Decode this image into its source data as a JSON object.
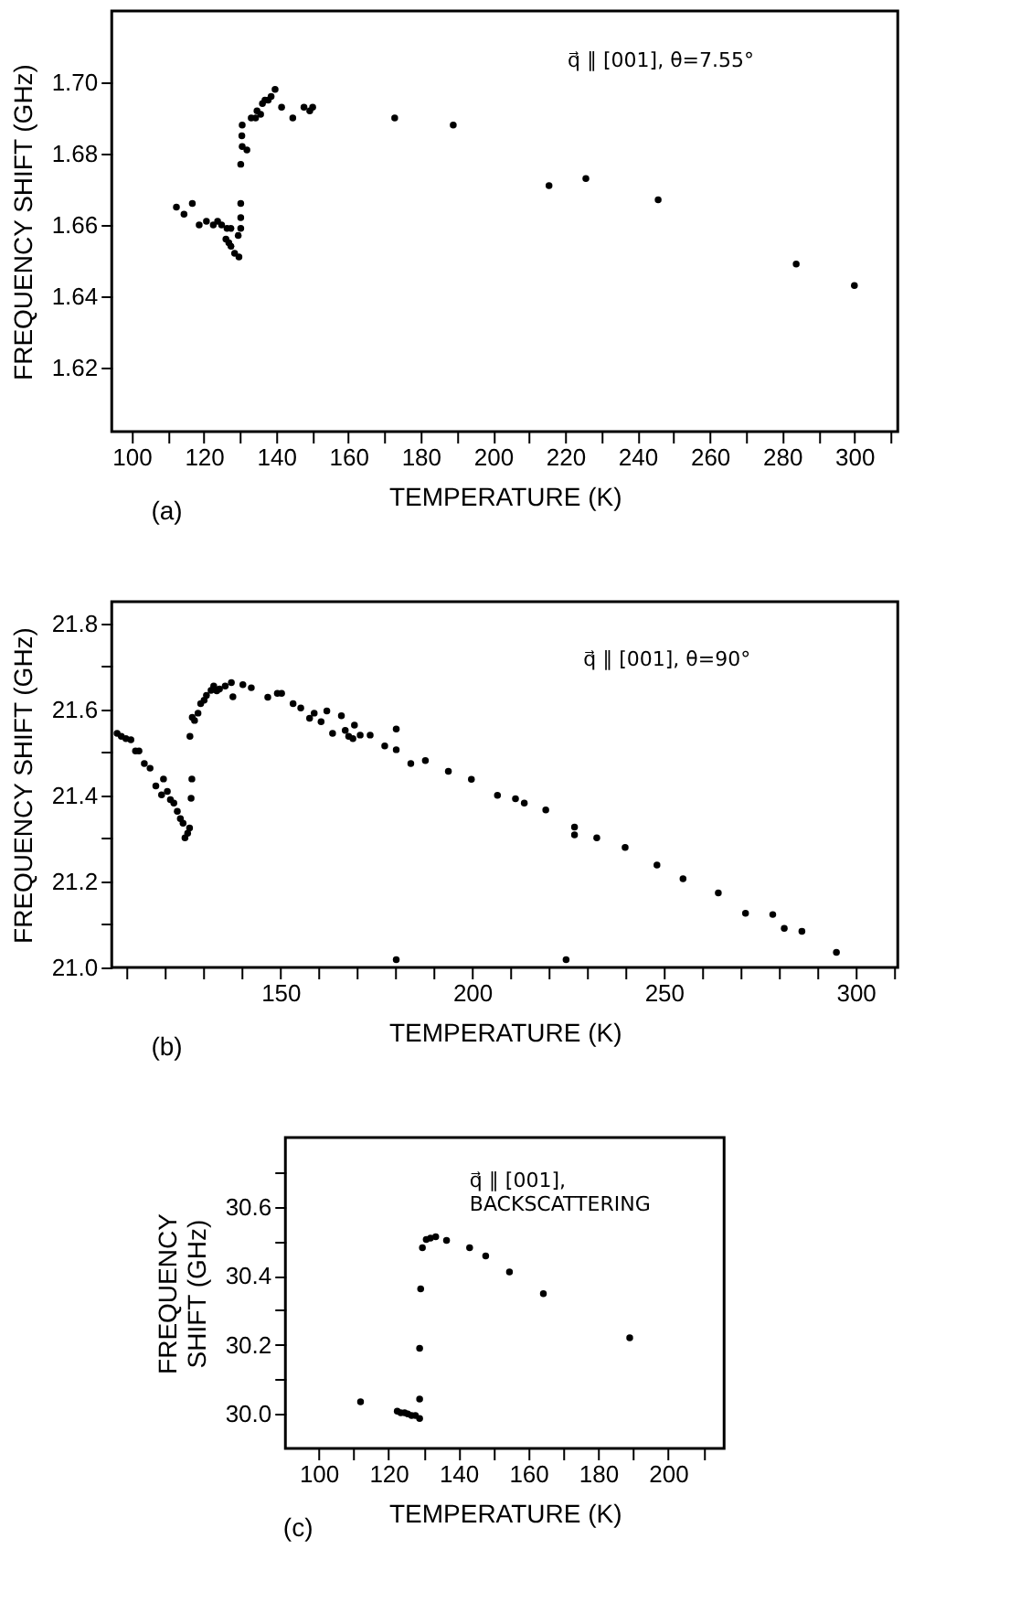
{
  "chart_data": [
    {
      "type": "scatter",
      "xlabel": "TEMPERATURE (K)",
      "ylabel": "FREQUENCY SHIFT (GHz)",
      "marker": "circle",
      "annotations": [
        "q⃗ ∥ [001], θ=7.55°",
        "(a)"
      ],
      "xlim": [
        94.5,
        312
      ],
      "ylim": [
        1.602,
        1.72
      ],
      "xticks": [
        100,
        {
          "value": 110,
          "label": null
        },
        120,
        {
          "value": 130,
          "label": null
        },
        140,
        {
          "value": 150,
          "label": null
        },
        160,
        {
          "value": 170,
          "label": null
        },
        180,
        {
          "value": 190,
          "label": null
        },
        200,
        {
          "value": 210,
          "label": null
        },
        220,
        {
          "value": 230,
          "label": null
        },
        240,
        {
          "value": 250,
          "label": null
        },
        260,
        {
          "value": 270,
          "label": null
        },
        280,
        {
          "value": 290,
          "label": null
        },
        300,
        {
          "value": 310,
          "label": null
        }
      ],
      "yticks": [
        1.62,
        1.64,
        1.66,
        1.68,
        {
          "value": 1.7,
          "label": "1.70"
        }
      ],
      "series": [
        {
          "color": "#000000",
          "x": [
            112.4,
            114.5,
            116.8,
            118.7,
            120.7,
            122.6,
            123.8,
            124.9,
            126.4,
            127.5,
            126.1,
            126.9,
            127.5,
            128.5,
            129.7,
            129.5,
            130.2,
            130.2,
            130.2,
            130.2,
            130.6,
            131.9,
            130.5,
            130.6,
            133.1,
            134.3,
            134.7,
            135.7,
            136.2,
            136.9,
            137.8,
            138.6,
            139.7,
            141.5,
            144.6,
            147.7,
            149.3,
            150.1,
            172.8,
            189.0,
            215.5,
            225.7,
            245.7,
            283.9,
            300.0
          ],
          "values": [
            1.665,
            1.663,
            1.666,
            1.66,
            1.661,
            1.66,
            1.661,
            1.66,
            1.659,
            1.659,
            1.656,
            1.655,
            1.654,
            1.652,
            1.651,
            1.657,
            1.659,
            1.662,
            1.666,
            1.677,
            1.682,
            1.681,
            1.685,
            1.688,
            1.69,
            1.69,
            1.692,
            1.691,
            1.694,
            1.695,
            1.695,
            1.696,
            1.698,
            1.693,
            1.69,
            1.693,
            1.692,
            1.693,
            1.69,
            1.688,
            1.671,
            1.673,
            1.667,
            1.649,
            1.643
          ]
        }
      ]
    },
    {
      "type": "scatter",
      "xlabel": "TEMPERATURE (K)",
      "ylabel": "FREQUENCY SHIFT (GHz)",
      "marker": "circle",
      "annotations": [
        "q⃗ ∥ [001], θ=90°",
        "(b)"
      ],
      "xlim": [
        106,
        311
      ],
      "ylim": [
        21.0,
        21.85
      ],
      "xticks": [
        {
          "value": 110,
          "label": null
        },
        {
          "value": 120,
          "label": null
        },
        {
          "value": 130,
          "label": null
        },
        {
          "value": 140,
          "label": null
        },
        150,
        {
          "value": 160,
          "label": null
        },
        {
          "value": 170,
          "label": null
        },
        {
          "value": 180,
          "label": null
        },
        {
          "value": 190,
          "label": null
        },
        200,
        {
          "value": 210,
          "label": null
        },
        {
          "value": 220,
          "label": null
        },
        {
          "value": 230,
          "label": null
        },
        {
          "value": 240,
          "label": null
        },
        250,
        {
          "value": 260,
          "label": null
        },
        {
          "value": 270,
          "label": null
        },
        {
          "value": 280,
          "label": null
        },
        {
          "value": 290,
          "label": null
        },
        300,
        {
          "value": 310,
          "label": null
        }
      ],
      "yticks": [
        {
          "value": 21.0,
          "label": "21.0"
        },
        {
          "value": 21.1,
          "label": null
        },
        21.2,
        {
          "value": 21.3,
          "label": null
        },
        21.4,
        {
          "value": 21.5,
          "label": null
        },
        21.6,
        {
          "value": 21.7,
          "label": null
        },
        21.8
      ],
      "series": [
        {
          "color": "#000000",
          "x": [
            107.4,
            108.5,
            109.7,
            111.0,
            112.2,
            113.1,
            114.5,
            116.0,
            117.5,
            119.0,
            119.5,
            120.5,
            121.3,
            122.2,
            123.1,
            123.9,
            124.6,
            125.1,
            125.8,
            126.3,
            126.4,
            126.7,
            126.9,
            127.0,
            127.6,
            128.5,
            129.2,
            130.1,
            130.7,
            131.9,
            132.6,
            133.4,
            134.1,
            135.6,
            137.2,
            137.6,
            140.2,
            142.4,
            146.7,
            149.2,
            150.3,
            153.3,
            155.3,
            157.6,
            158.8,
            160.6,
            162.1,
            163.6,
            165.9,
            166.9,
            167.8,
            168.9,
            169.3,
            170.8,
            173.4,
            177.2,
            180.2,
            180.2,
            184.0,
            187.8,
            193.8,
            199.8,
            206.6,
            180.2,
            211.3,
            213.6,
            219.2,
            226.7,
            226.7,
            232.5,
            239.9,
            248.2,
            255.0,
            264.2,
            271.3,
            278.4,
            281.4,
            286.0,
            295.0,
            224.5
          ],
          "values": [
            21.544,
            21.537,
            21.532,
            21.529,
            21.503,
            21.503,
            21.474,
            21.463,
            21.422,
            21.401,
            21.438,
            21.409,
            21.39,
            21.382,
            21.363,
            21.346,
            21.335,
            21.301,
            21.312,
            21.324,
            21.537,
            21.393,
            21.438,
            21.581,
            21.574,
            21.591,
            21.613,
            21.621,
            21.632,
            21.644,
            21.654,
            21.643,
            21.647,
            21.654,
            21.662,
            21.629,
            21.657,
            21.65,
            21.628,
            21.637,
            21.637,
            21.613,
            21.603,
            21.579,
            21.591,
            21.571,
            21.596,
            21.544,
            21.585,
            21.551,
            21.537,
            21.532,
            21.563,
            21.54,
            21.54,
            21.515,
            21.554,
            21.506,
            21.474,
            21.481,
            21.456,
            21.437,
            21.4,
            21.018,
            21.392,
            21.382,
            21.366,
            21.326,
            21.308,
            21.301,
            21.279,
            21.238,
            21.206,
            21.173,
            21.126,
            21.123,
            21.091,
            21.084,
            21.035,
            21.018
          ]
        }
      ]
    },
    {
      "type": "scatter",
      "xlabel": "TEMPERATURE (K)",
      "ylabel": "FREQUENCY\nSHIFT (GHz)",
      "marker": "circle",
      "annotations": [
        "q⃗ ∥ [001],\nBACKSCATTERING",
        "(c)"
      ],
      "xlim": [
        90.5,
        216
      ],
      "ylim": [
        29.9,
        30.8
      ],
      "xticks": [
        100,
        {
          "value": 110,
          "label": null
        },
        120,
        {
          "value": 130,
          "label": null
        },
        140,
        {
          "value": 150,
          "label": null
        },
        160,
        {
          "value": 170,
          "label": null
        },
        180,
        {
          "value": 190,
          "label": null
        },
        200,
        {
          "value": 210,
          "label": null
        }
      ],
      "yticks": [
        {
          "value": 30.0,
          "label": "30.0"
        },
        {
          "value": 30.1,
          "label": null
        },
        30.2,
        {
          "value": 30.3,
          "label": null
        },
        30.4,
        {
          "value": 30.5,
          "label": null
        },
        30.6,
        {
          "value": 30.7,
          "label": null
        }
      ],
      "series": [
        {
          "color": "#000000",
          "x": [
            112.0,
            122.5,
            123.5,
            124.6,
            125.5,
            126.6,
            127.7,
            128.9,
            128.9,
            128.9,
            129.2,
            129.7,
            130.8,
            132.0,
            133.5,
            136.6,
            143.2,
            147.8,
            154.6,
            164.3,
            189.0
          ],
          "values": [
            30.035,
            30.008,
            30.003,
            30.003,
            30.0,
            29.995,
            29.995,
            29.987,
            30.043,
            30.19,
            30.362,
            30.481,
            30.505,
            30.509,
            30.513,
            30.502,
            30.481,
            30.457,
            30.411,
            30.348,
            30.22
          ]
        }
      ]
    }
  ]
}
